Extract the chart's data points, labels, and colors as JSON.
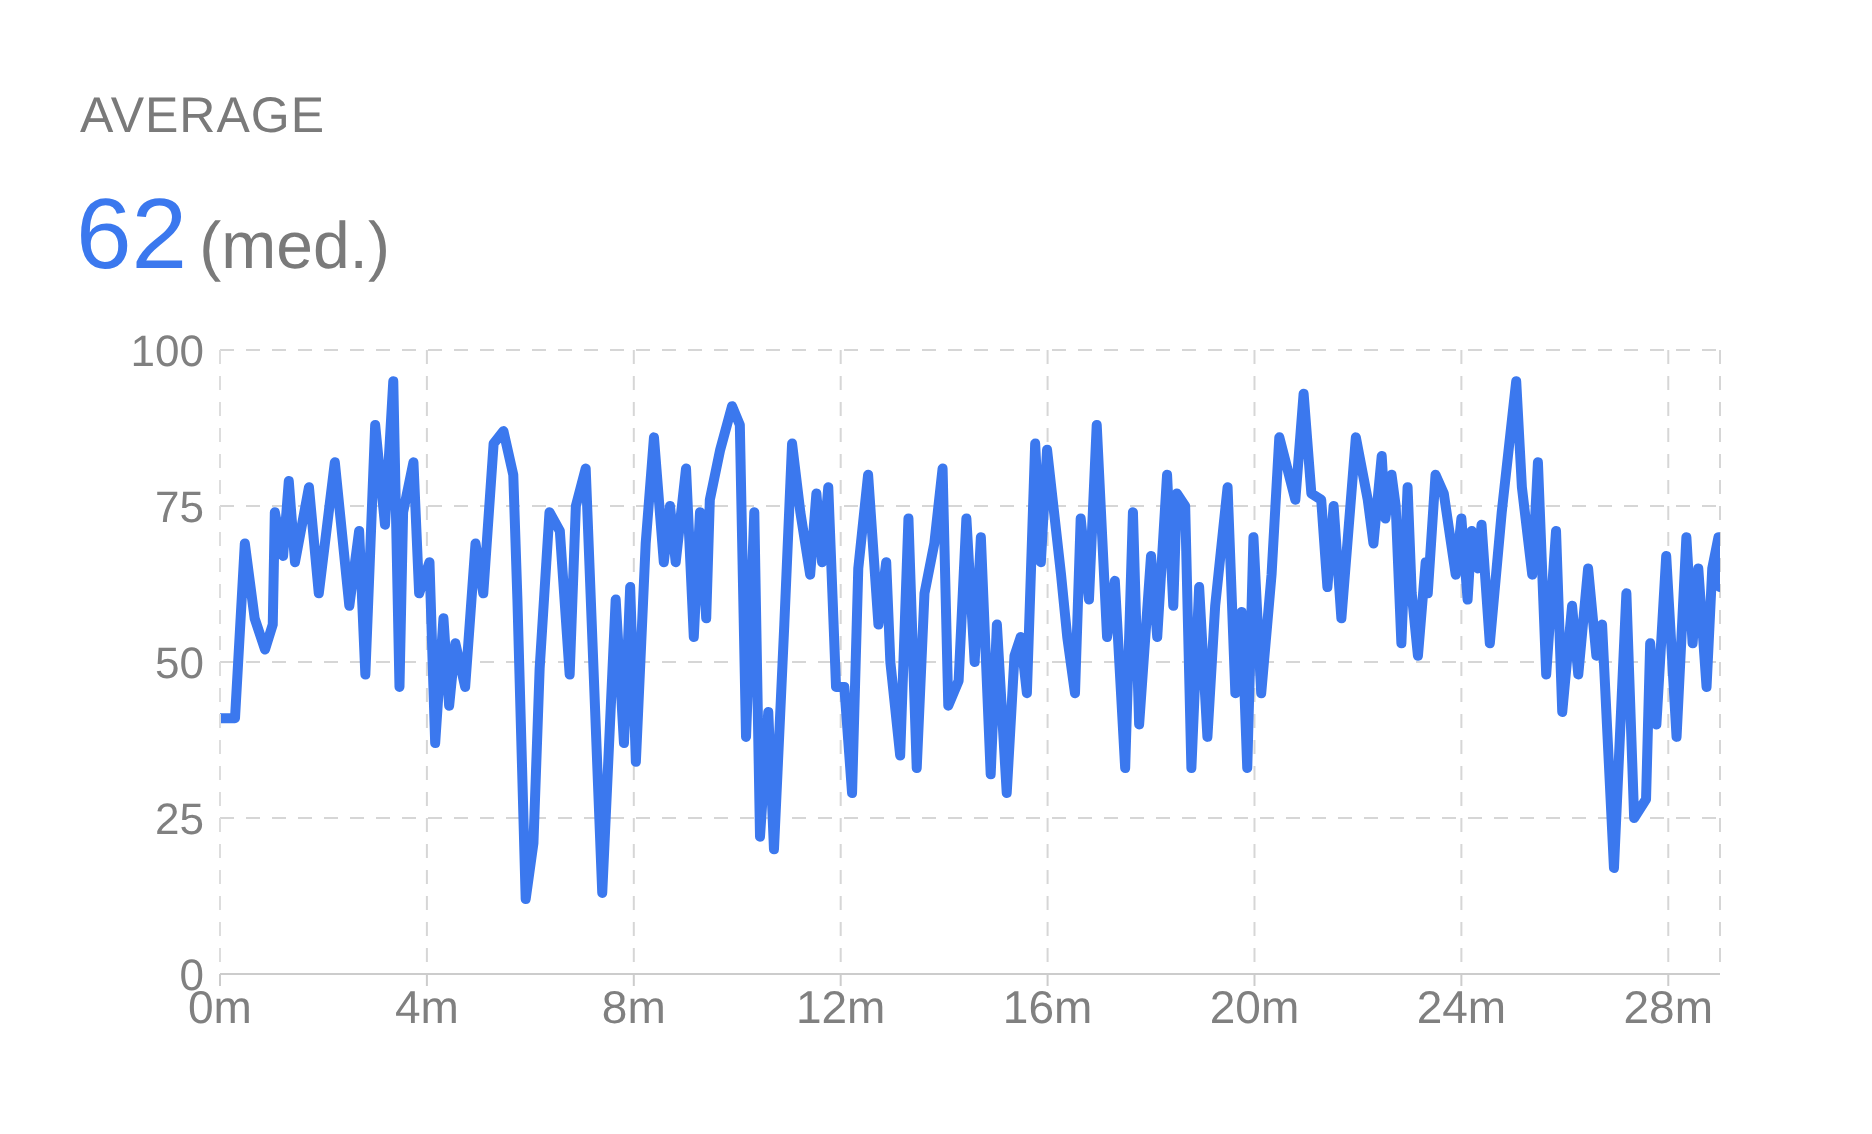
{
  "chart_data": {
    "type": "line",
    "title": "AVERAGE",
    "subtitle": "62",
    "annotations": [
      "(med.)"
    ],
    "xlim": [
      0,
      29
    ],
    "xticks": [
      {
        "value": 0,
        "label": "0m"
      },
      {
        "value": 4,
        "label": "4m"
      },
      {
        "value": 8,
        "label": "8m"
      },
      {
        "value": 12,
        "label": "12m"
      },
      {
        "value": 16,
        "label": "16m"
      },
      {
        "value": 20,
        "label": "20m"
      },
      {
        "value": 24,
        "label": "24m"
      },
      {
        "value": 28,
        "label": "28m"
      }
    ],
    "ylim": [
      0,
      100
    ],
    "yticks": [
      0,
      25,
      50,
      75,
      100
    ],
    "grid": true,
    "marker": "none",
    "line_style": "solid",
    "legend": false,
    "x": [
      0,
      0.29,
      0.48,
      0.67,
      0.87,
      1.02,
      1.06,
      1.22,
      1.33,
      1.45,
      1.72,
      1.91,
      2.22,
      2.5,
      2.69,
      2.81,
      3.0,
      3.19,
      3.35,
      3.47,
      3.54,
      3.74,
      3.85,
      4.05,
      4.16,
      4.32,
      4.43,
      4.55,
      4.74,
      4.94,
      5.09,
      5.29,
      5.48,
      5.67,
      5.75,
      5.91,
      6.06,
      6.18,
      6.37,
      6.57,
      6.76,
      6.88,
      7.07,
      7.39,
      7.65,
      7.81,
      7.93,
      8.04,
      8.23,
      8.39,
      8.58,
      8.7,
      8.81,
      9.01,
      9.16,
      9.28,
      9.4,
      9.47,
      9.67,
      9.9,
      10.05,
      10.17,
      10.33,
      10.44,
      10.6,
      10.71,
      10.91,
      11.06,
      11.22,
      11.41,
      11.53,
      11.64,
      11.76,
      11.91,
      12.07,
      12.22,
      12.34,
      12.53,
      12.73,
      12.88,
      12.96,
      13.15,
      13.31,
      13.47,
      13.62,
      13.81,
      13.97,
      14.08,
      14.28,
      14.43,
      14.59,
      14.71,
      14.9,
      15.02,
      15.21,
      15.36,
      15.48,
      15.6,
      15.76,
      15.87,
      15.99,
      16.26,
      16.38,
      16.53,
      16.64,
      16.8,
      16.95,
      17.15,
      17.3,
      17.5,
      17.65,
      17.77,
      18.0,
      18.12,
      18.31,
      18.43,
      18.5,
      18.66,
      18.78,
      18.93,
      19.09,
      19.24,
      19.48,
      19.63,
      19.75,
      19.86,
      19.98,
      20.13,
      20.33,
      20.48,
      20.79,
      20.95,
      21.1,
      21.29,
      21.41,
      21.53,
      21.68,
      21.96,
      22.19,
      22.3,
      22.46,
      22.53,
      22.65,
      22.73,
      22.84,
      22.96,
      23.04,
      23.16,
      23.31,
      23.35,
      23.5,
      23.66,
      23.89,
      24.0,
      24.12,
      24.2,
      24.32,
      24.39,
      24.55,
      24.78,
      25.06,
      25.17,
      25.37,
      25.48,
      25.64,
      25.83,
      25.95,
      26.14,
      26.26,
      26.45,
      26.61,
      26.72,
      26.95,
      27.19,
      27.34,
      27.57,
      27.65,
      27.77,
      27.96,
      28.16,
      28.35,
      28.47,
      28.58,
      28.74,
      28.85,
      28.97,
      29.0
    ],
    "series": [
      {
        "color": "#3b78ee",
        "values": [
          41,
          41,
          69,
          57,
          52,
          56,
          74,
          67,
          79,
          66,
          78,
          61,
          82,
          59,
          71,
          48,
          88,
          72,
          95,
          46,
          74,
          82,
          61,
          66,
          37,
          57,
          43,
          53,
          46,
          69,
          61,
          85,
          87,
          80,
          60,
          12,
          21,
          49,
          74,
          71,
          48,
          75,
          81,
          13,
          60,
          37,
          62,
          34,
          69,
          86,
          66,
          75,
          66,
          81,
          54,
          74,
          57,
          76,
          84,
          91,
          88,
          38,
          74,
          22,
          42,
          20,
          56,
          85,
          74,
          64,
          77,
          66,
          78,
          46,
          46,
          29,
          65,
          80,
          56,
          66,
          50,
          35,
          73,
          33,
          61,
          69,
          81,
          43,
          47,
          73,
          50,
          70,
          32,
          56,
          29,
          51,
          54,
          45,
          85,
          66,
          84,
          64,
          54,
          45,
          73,
          60,
          88,
          54,
          63,
          33,
          74,
          40,
          67,
          54,
          80,
          59,
          77,
          75,
          33,
          62,
          38,
          59,
          78,
          45,
          58,
          33,
          70,
          45,
          64,
          86,
          76,
          93,
          77,
          76,
          62,
          75,
          57,
          86,
          76,
          69,
          83,
          73,
          80,
          75,
          53,
          78,
          61,
          51,
          66,
          61,
          80,
          77,
          64,
          73,
          60,
          71,
          65,
          72,
          53,
          74,
          95,
          78,
          64,
          82,
          48,
          71,
          42,
          59,
          48,
          65,
          51,
          56,
          17,
          61,
          25,
          28,
          53,
          40,
          67,
          38,
          70,
          53,
          65,
          46,
          65,
          70,
          62
        ]
      }
    ]
  }
}
